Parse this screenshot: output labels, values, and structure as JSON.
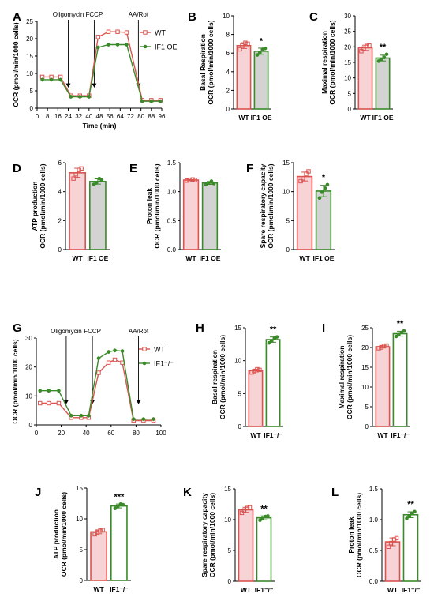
{
  "colors": {
    "wt": "#d9534f",
    "wt_fill": "#f7d3d6",
    "oe": "#3a8a2a",
    "oe_fill": "#d3d3d3",
    "ko_fill": "#ffffff",
    "axis": "#000000"
  },
  "chart_data": [
    {
      "panel": "A",
      "type": "line",
      "xlabel": "Time (min)",
      "ylabel": "OCR (pmol/min/1000 cells)",
      "xlim": [
        0,
        96
      ],
      "ylim": [
        0,
        25
      ],
      "xticks": [
        0,
        8,
        16,
        24,
        32,
        40,
        48,
        56,
        64,
        72,
        80,
        88,
        96
      ],
      "yticks": [
        0,
        5,
        10,
        15,
        20,
        25
      ],
      "injections": [
        {
          "label": "Oligomycin",
          "x": 24
        },
        {
          "label": "FCCP",
          "x": 44
        },
        {
          "label": "AA/Rot",
          "x": 78
        }
      ],
      "legend": "top-right",
      "series": [
        {
          "name": "WT",
          "x": [
            4,
            11,
            18,
            26,
            33,
            40,
            47,
            55,
            62,
            69,
            81,
            88,
            95
          ],
          "values": [
            9.0,
            9.0,
            9.0,
            3.6,
            3.6,
            3.6,
            20.5,
            22.0,
            22.0,
            21.8,
            2.3,
            2.3,
            2.3
          ]
        },
        {
          "name": "IF1 OE",
          "x": [
            4,
            11,
            18,
            26,
            33,
            40,
            47,
            55,
            62,
            69,
            81,
            88,
            95
          ],
          "values": [
            8.2,
            8.2,
            8.2,
            3.3,
            3.3,
            3.3,
            17.5,
            18.3,
            18.3,
            18.3,
            2.0,
            2.0,
            2.0
          ]
        }
      ]
    },
    {
      "panel": "B",
      "type": "bar",
      "ylabel": [
        "Basal Respiration",
        "OCR (pmol/min/1000 cells)"
      ],
      "categories": [
        "WT",
        "IF1 OE"
      ],
      "values": [
        6.8,
        6.2
      ],
      "points": [
        [
          6.4,
          6.8,
          7.1,
          7.0
        ],
        [
          5.8,
          6.0,
          6.4,
          6.5
        ]
      ],
      "ylim": [
        0,
        10
      ],
      "yticks": [
        0,
        2,
        4,
        6,
        8,
        10
      ],
      "significance": "*"
    },
    {
      "panel": "C",
      "type": "bar",
      "ylabel": [
        "Maximal respiration",
        "OCR (pmol/min/1000 cells)"
      ],
      "categories": [
        "WT",
        "IF1 OE"
      ],
      "values": [
        19.7,
        16.4
      ],
      "points": [
        [
          18.6,
          19.5,
          20.3,
          20.4
        ],
        [
          15.4,
          16.0,
          16.6,
          17.6
        ]
      ],
      "ylim": [
        0,
        30
      ],
      "yticks": [
        0,
        5,
        10,
        15,
        20,
        25,
        30
      ],
      "significance": "**"
    },
    {
      "panel": "D",
      "type": "bar",
      "ylabel": [
        "ATP production",
        "OCR (pmol/min/1000 cells)"
      ],
      "categories": [
        "WT",
        "IF1 OE"
      ],
      "values": [
        5.3,
        4.7
      ],
      "points": [
        [
          4.9,
          5.2,
          5.5,
          5.6
        ],
        [
          4.5,
          4.6,
          4.9,
          4.8
        ]
      ],
      "ylim": [
        0,
        6
      ],
      "yticks": [
        0,
        2,
        4,
        6
      ],
      "significance": ""
    },
    {
      "panel": "E",
      "type": "bar",
      "ylabel": [
        "Proton leak",
        "OCR (pmol/min/1000 cells)"
      ],
      "categories": [
        "WT",
        "IF1 OE"
      ],
      "values": [
        1.2,
        1.15
      ],
      "points": [
        [
          1.19,
          1.2,
          1.21,
          1.2
        ],
        [
          1.12,
          1.15,
          1.18,
          1.14
        ]
      ],
      "ylim": [
        0,
        1.5
      ],
      "yticks": [
        0.0,
        0.5,
        1.0,
        1.5
      ],
      "significance": ""
    },
    {
      "panel": "F",
      "type": "bar",
      "ylabel": [
        "Spare respiratory capacity",
        "OCR (pmol/min/1000 cells)"
      ],
      "categories": [
        "WT",
        "IF1 OE"
      ],
      "values": [
        12.6,
        10.1
      ],
      "points": [
        [
          11.8,
          12.3,
          13.1,
          13.5
        ],
        [
          8.9,
          9.9,
          10.6,
          11.2
        ]
      ],
      "ylim": [
        0,
        15
      ],
      "yticks": [
        0,
        5,
        10,
        15
      ],
      "significance": "*"
    },
    {
      "panel": "G",
      "type": "line",
      "ylabel": "OCR (pmol/min/1000 cells)",
      "xlim": [
        0,
        100
      ],
      "ylim": [
        0,
        30
      ],
      "xticks": [
        0,
        20,
        40,
        60,
        80,
        100
      ],
      "yticks": [
        0,
        10,
        20,
        30
      ],
      "injections": [
        {
          "label": "Oligomycin",
          "x": 24
        },
        {
          "label": "FCCP",
          "x": 45
        },
        {
          "label": "AA/Rot",
          "x": 82
        }
      ],
      "legend": "top-right",
      "series": [
        {
          "name": "WT",
          "x": [
            3,
            10,
            18,
            28,
            36,
            42,
            50,
            58,
            63,
            69,
            78,
            86,
            94
          ],
          "values": [
            7.5,
            7.5,
            7.5,
            2.5,
            2.5,
            2.5,
            18.0,
            21.5,
            22.5,
            21.5,
            1.5,
            1.5,
            1.5
          ]
        },
        {
          "name": "IF1⁻/⁻",
          "x": [
            3,
            10,
            18,
            28,
            36,
            42,
            50,
            58,
            63,
            69,
            78,
            86,
            94
          ],
          "values": [
            11.8,
            11.8,
            11.8,
            3.2,
            3.2,
            3.2,
            23.0,
            25.2,
            25.7,
            25.5,
            2.0,
            2.0,
            2.0
          ]
        }
      ]
    },
    {
      "panel": "H",
      "type": "bar",
      "ylabel": [
        "Basal respiration",
        "OCR (pmol/min/1000 cells)"
      ],
      "categories": [
        "WT",
        "IF1⁻/⁻"
      ],
      "values": [
        8.5,
        13.2
      ],
      "points": [
        [
          8.2,
          8.4,
          8.7,
          8.6
        ],
        [
          12.7,
          13.0,
          13.4,
          13.6
        ]
      ],
      "ylim": [
        0,
        15
      ],
      "yticks": [
        0,
        5,
        10,
        15
      ],
      "significance": "**"
    },
    {
      "panel": "I",
      "type": "bar",
      "ylabel": [
        "Maximal respiration",
        "OCR (pmol/min/1000 cells)"
      ],
      "categories": [
        "WT",
        "IF1⁻/⁻"
      ],
      "values": [
        20.2,
        23.5
      ],
      "points": [
        [
          19.8,
          20.0,
          20.4,
          20.5
        ],
        [
          22.8,
          23.2,
          23.8,
          24.2
        ]
      ],
      "ylim": [
        0,
        25
      ],
      "yticks": [
        0,
        5,
        10,
        15,
        20,
        25
      ],
      "significance": "**"
    },
    {
      "panel": "J",
      "type": "bar",
      "ylabel": [
        "ATP production",
        "OCR (pmol/min/1000 cells)"
      ],
      "categories": [
        "WT",
        "IF1⁻/⁻"
      ],
      "values": [
        7.9,
        12.1
      ],
      "points": [
        [
          7.5,
          7.8,
          8.1,
          8.2
        ],
        [
          11.7,
          12.0,
          12.4,
          12.3
        ]
      ],
      "ylim": [
        0,
        15
      ],
      "yticks": [
        0,
        5,
        10,
        15
      ],
      "significance": "***"
    },
    {
      "panel": "K",
      "type": "bar",
      "ylabel": [
        "Spare respiratory capacity",
        "OCR (pmol/min/1000 cells)"
      ],
      "categories": [
        "WT",
        "IF1⁻/⁻"
      ],
      "values": [
        11.6,
        10.3
      ],
      "points": [
        [
          11.1,
          11.5,
          11.9,
          12.0
        ],
        [
          9.9,
          10.2,
          10.5,
          10.6
        ]
      ],
      "ylim": [
        0,
        15
      ],
      "yticks": [
        0,
        5,
        10,
        15
      ],
      "significance": "**"
    },
    {
      "panel": "L",
      "type": "bar",
      "ylabel": [
        "Proton leak",
        "OCR (pmol/min/1000 cells)"
      ],
      "categories": [
        "WT",
        "IF1⁻/⁻"
      ],
      "values": [
        0.64,
        1.08
      ],
      "points": [
        [
          0.56,
          0.62,
          0.68,
          0.7
        ],
        [
          1.02,
          1.06,
          1.1,
          1.13
        ]
      ],
      "ylim": [
        0,
        1.5
      ],
      "yticks": [
        0.0,
        0.5,
        1.0,
        1.5
      ],
      "significance": "**"
    }
  ]
}
